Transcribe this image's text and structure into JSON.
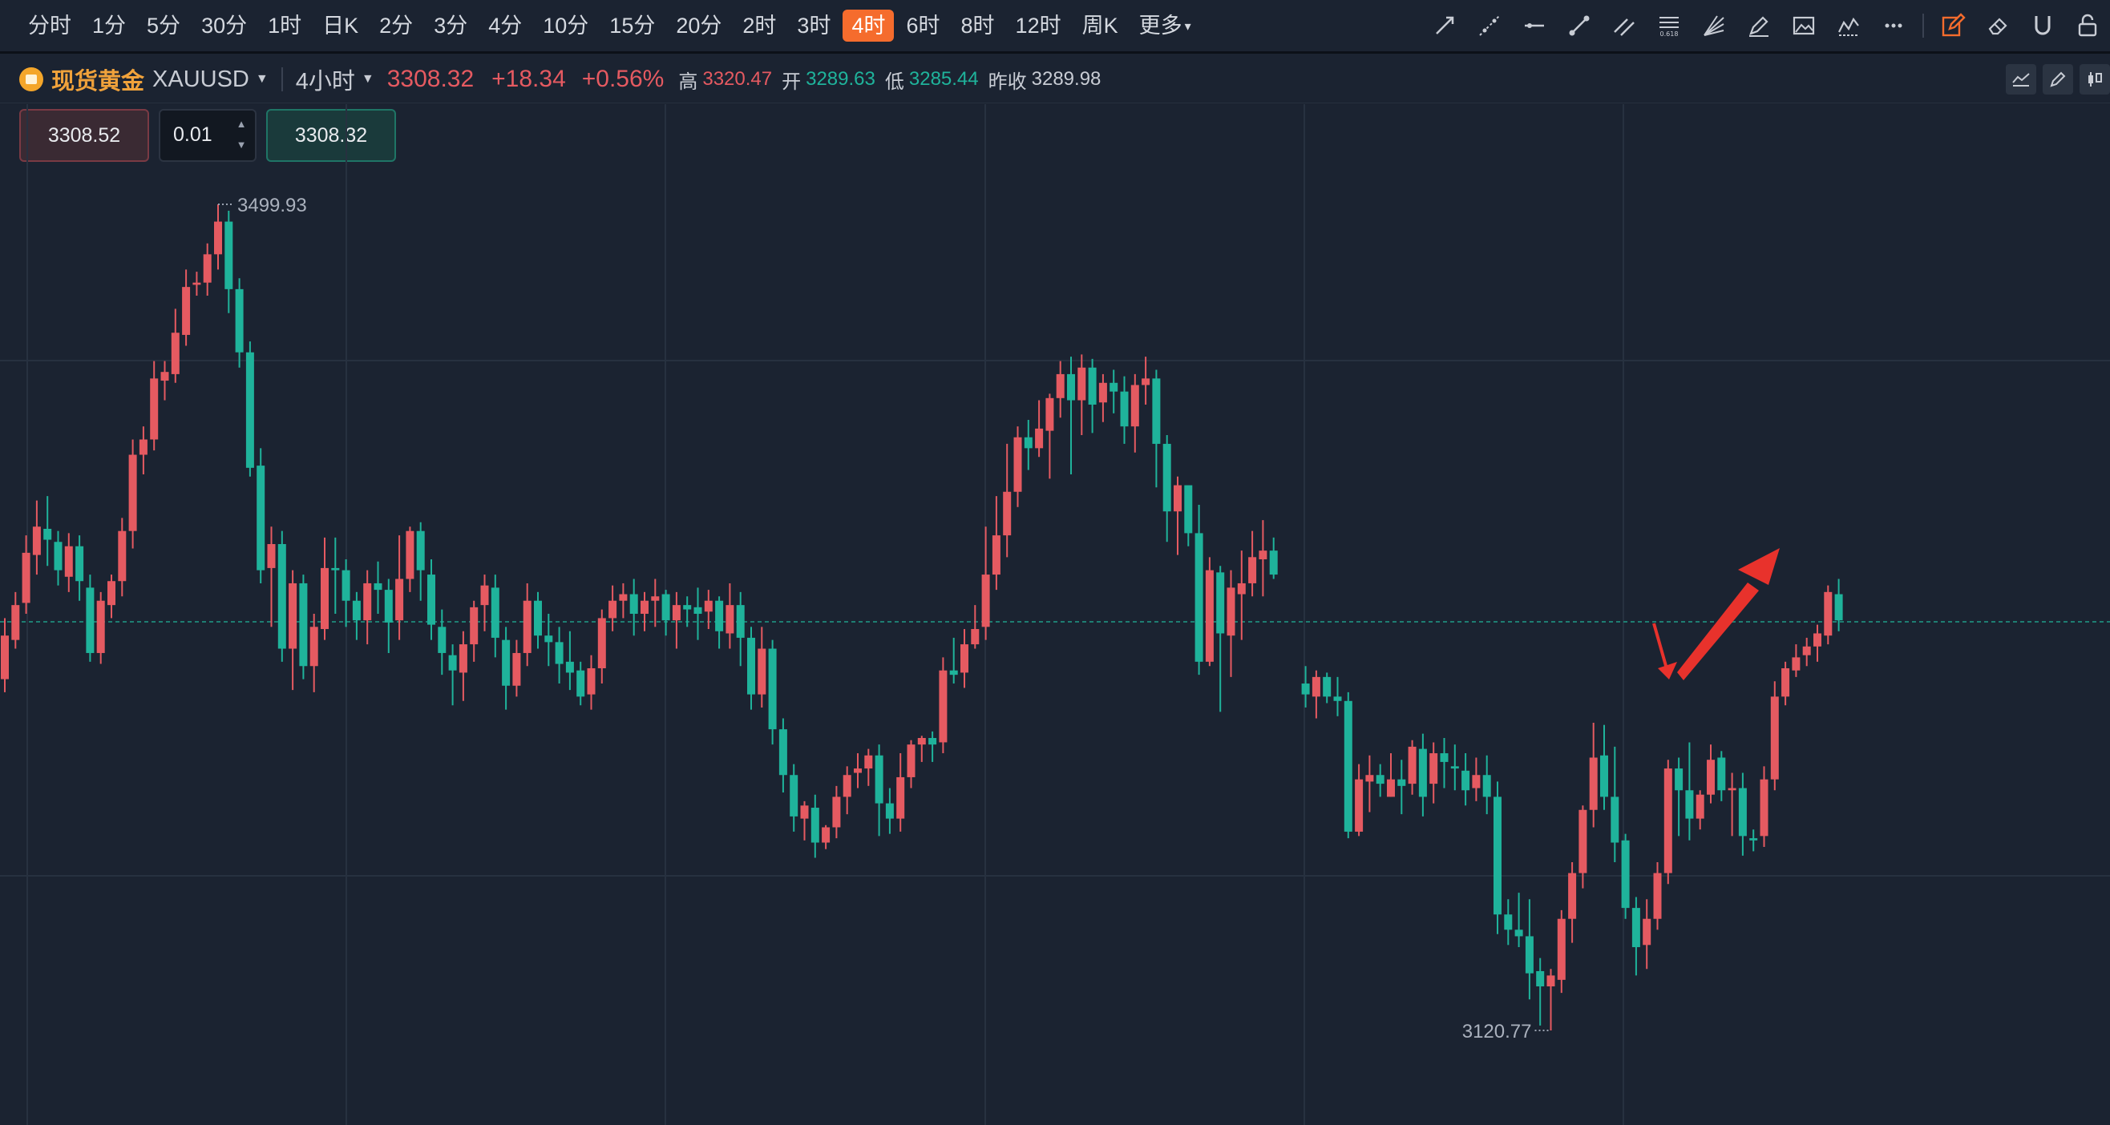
{
  "periods": [
    "分时",
    "1分",
    "5分",
    "30分",
    "1时",
    "日K",
    "2分",
    "3分",
    "4分",
    "10分",
    "15分",
    "20分",
    "2时",
    "3时",
    "4时",
    "6时",
    "8时",
    "12时",
    "周K",
    "更多"
  ],
  "active_period": "4时",
  "tools": [
    {
      "name": "ray-line-icon"
    },
    {
      "name": "extended-line-icon"
    },
    {
      "name": "horizontal-line-icon"
    },
    {
      "name": "segment-line-icon"
    },
    {
      "name": "parallel-channel-icon"
    },
    {
      "name": "fibonacci-icon"
    },
    {
      "name": "gann-fan-icon"
    },
    {
      "name": "highlighter-icon"
    },
    {
      "name": "image-icon"
    },
    {
      "name": "pattern-icon"
    },
    {
      "name": "more-dots-icon"
    },
    {
      "name": "edit-draw-icon"
    },
    {
      "name": "eraser-icon"
    },
    {
      "name": "magnet-icon"
    },
    {
      "name": "lock-icon"
    }
  ],
  "symbol": {
    "name": "现货黄金",
    "code": "XAUUSD",
    "interval": "4小时",
    "price": "3308.32",
    "change": "+18.34",
    "change_pct": "+0.56%",
    "high_label": "高",
    "high": "3320.47",
    "open_label": "开",
    "open": "3289.63",
    "low_label": "低",
    "low": "3285.44",
    "prev_label": "昨收",
    "prev_close": "3289.98"
  },
  "trade": {
    "sell": "3308.52",
    "qty": "0.01",
    "buy": "3308.32"
  },
  "colors": {
    "up": "#e55a61",
    "down": "#1fb39b",
    "accent": "#f56c2d",
    "annotation": "#e8322c"
  },
  "chart_data": {
    "type": "candlestick",
    "title": "",
    "max_label": "3499.93",
    "min_label": "3120.77",
    "current_price": 3308.32,
    "ylim": [
      3080,
      3560
    ],
    "candles": [
      [
        3282,
        3302,
        3276,
        3310
      ],
      [
        3300,
        3316,
        3296,
        3322
      ],
      [
        3317,
        3340,
        3312,
        3348
      ],
      [
        3339,
        3352,
        3330,
        3364
      ],
      [
        3351,
        3346,
        3334,
        3366
      ],
      [
        3345,
        3332,
        3325,
        3350
      ],
      [
        3329,
        3343,
        3322,
        3349
      ],
      [
        3343,
        3327,
        3318,
        3348
      ],
      [
        3324,
        3294,
        3290,
        3330
      ],
      [
        3294,
        3318,
        3289,
        3322
      ],
      [
        3316,
        3327,
        3310,
        3330
      ],
      [
        3327,
        3350,
        3320,
        3356
      ],
      [
        3350,
        3385,
        3342,
        3392
      ],
      [
        3385,
        3392,
        3376,
        3398
      ],
      [
        3392,
        3420,
        3387,
        3428
      ],
      [
        3419,
        3423,
        3410,
        3428
      ],
      [
        3422,
        3441,
        3418,
        3452
      ],
      [
        3440,
        3462,
        3435,
        3470
      ],
      [
        3463,
        3464,
        3458,
        3469
      ],
      [
        3464,
        3477,
        3458,
        3482
      ],
      [
        3477,
        3492,
        3470,
        3499.93
      ],
      [
        3492,
        3461,
        3450,
        3497
      ],
      [
        3461,
        3432,
        3425,
        3466
      ],
      [
        3432,
        3379,
        3375,
        3437
      ],
      [
        3380,
        3332,
        3326,
        3388
      ],
      [
        3333,
        3344,
        3306,
        3352
      ],
      [
        3344,
        3296,
        3290,
        3350
      ],
      [
        3296,
        3326,
        3277,
        3332
      ],
      [
        3326,
        3288,
        3282,
        3330
      ],
      [
        3288,
        3306,
        3276,
        3312
      ],
      [
        3305,
        3333,
        3300,
        3347
      ],
      [
        3333,
        3332,
        3312,
        3347
      ],
      [
        3332,
        3318,
        3306,
        3337
      ],
      [
        3318,
        3309,
        3300,
        3322
      ],
      [
        3309,
        3326,
        3298,
        3332
      ],
      [
        3326,
        3323,
        3312,
        3336
      ],
      [
        3323,
        3308,
        3294,
        3328
      ],
      [
        3309,
        3328,
        3300,
        3348
      ],
      [
        3328,
        3350,
        3322,
        3352
      ],
      [
        3350,
        3332,
        3318,
        3354
      ],
      [
        3330,
        3307,
        3300,
        3337
      ],
      [
        3306,
        3294,
        3284,
        3314
      ],
      [
        3293,
        3286,
        3270,
        3298
      ],
      [
        3285,
        3298,
        3272,
        3304
      ],
      [
        3298,
        3315,
        3290,
        3318
      ],
      [
        3316,
        3325,
        3304,
        3330
      ],
      [
        3324,
        3301,
        3292,
        3330
      ],
      [
        3300,
        3279,
        3268,
        3306
      ],
      [
        3279,
        3294,
        3274,
        3300
      ],
      [
        3294,
        3318,
        3288,
        3326
      ],
      [
        3318,
        3302,
        3296,
        3322
      ],
      [
        3302,
        3299,
        3288,
        3312
      ],
      [
        3299,
        3289,
        3280,
        3306
      ],
      [
        3290,
        3285,
        3277,
        3304
      ],
      [
        3286,
        3274,
        3270,
        3290
      ],
      [
        3275,
        3287,
        3268,
        3293
      ],
      [
        3287,
        3310,
        3280,
        3314
      ],
      [
        3310,
        3318,
        3304,
        3325
      ],
      [
        3318,
        3321,
        3310,
        3326
      ],
      [
        3321,
        3312,
        3302,
        3328
      ],
      [
        3312,
        3318,
        3304,
        3322
      ],
      [
        3318,
        3320,
        3306,
        3328
      ],
      [
        3321,
        3309,
        3302,
        3323
      ],
      [
        3309,
        3316,
        3296,
        3322
      ],
      [
        3316,
        3314,
        3306,
        3320
      ],
      [
        3315,
        3312,
        3300,
        3324
      ],
      [
        3313,
        3318,
        3305,
        3323
      ],
      [
        3318,
        3304,
        3296,
        3320
      ],
      [
        3303,
        3316,
        3296,
        3326
      ],
      [
        3316,
        3301,
        3288,
        3322
      ],
      [
        3301,
        3275,
        3268,
        3306
      ],
      [
        3275,
        3296,
        3269,
        3306
      ],
      [
        3296,
        3259,
        3252,
        3300
      ],
      [
        3259,
        3238,
        3230,
        3264
      ],
      [
        3238,
        3219,
        3212,
        3243
      ],
      [
        3218,
        3224,
        3208,
        3226
      ],
      [
        3223,
        3207,
        3200,
        3229
      ],
      [
        3207,
        3214,
        3204,
        3215
      ],
      [
        3214,
        3228,
        3209,
        3233
      ],
      [
        3228,
        3238,
        3220,
        3242
      ],
      [
        3239,
        3241,
        3232,
        3248
      ],
      [
        3241,
        3247,
        3233,
        3250
      ],
      [
        3247,
        3225,
        3210,
        3252
      ],
      [
        3225,
        3218,
        3211,
        3232
      ],
      [
        3218,
        3237,
        3212,
        3248
      ],
      [
        3237,
        3252,
        3232,
        3254
      ],
      [
        3252,
        3255,
        3244,
        3256
      ],
      [
        3255,
        3252,
        3244,
        3258
      ],
      [
        3253,
        3286,
        3248,
        3292
      ],
      [
        3286,
        3284,
        3280,
        3301
      ],
      [
        3285,
        3298,
        3278,
        3305
      ],
      [
        3298,
        3305,
        3296,
        3316
      ],
      [
        3306,
        3330,
        3300,
        3352
      ],
      [
        3330,
        3348,
        3323,
        3366
      ],
      [
        3348,
        3368,
        3338,
        3390
      ],
      [
        3368,
        3393,
        3361,
        3398
      ],
      [
        3393,
        3388,
        3378,
        3401
      ],
      [
        3388,
        3397,
        3384,
        3410
      ],
      [
        3396,
        3411,
        3374,
        3413
      ],
      [
        3411,
        3422,
        3402,
        3428
      ],
      [
        3422,
        3410,
        3376,
        3430
      ],
      [
        3410,
        3425,
        3394,
        3431
      ],
      [
        3425,
        3408,
        3395,
        3429
      ],
      [
        3409,
        3418,
        3400,
        3422
      ],
      [
        3418,
        3414,
        3404,
        3424
      ],
      [
        3414,
        3398,
        3390,
        3421
      ],
      [
        3398,
        3417,
        3386,
        3422
      ],
      [
        3417,
        3420,
        3408,
        3430
      ],
      [
        3420,
        3390,
        3370,
        3424
      ],
      [
        3390,
        3359,
        3345,
        3394
      ],
      [
        3359,
        3371,
        3339,
        3375
      ],
      [
        3371,
        3349,
        3343,
        3356
      ],
      [
        3349,
        3290,
        3284,
        3362
      ],
      [
        3290,
        3332,
        3288,
        3338
      ],
      [
        3331,
        3303,
        3267,
        3334
      ],
      [
        3302,
        3324,
        3283,
        3332
      ],
      [
        3321,
        3326,
        3300,
        3341
      ],
      [
        3326,
        3338,
        3320,
        3350
      ],
      [
        3337,
        3341,
        3320,
        3355
      ],
      [
        3341,
        3330,
        3328,
        3347
      ],
      null,
      null,
      [
        3280,
        3275,
        3269,
        3288
      ],
      [
        3274,
        3283,
        3264,
        3286
      ],
      [
        3283,
        3274,
        3271,
        3285
      ],
      [
        3274,
        3272,
        3265,
        3283
      ],
      [
        3272,
        3212,
        3209,
        3276
      ],
      [
        3212,
        3236,
        3210,
        3243
      ],
      [
        3235,
        3238,
        3221,
        3247
      ],
      [
        3238,
        3234,
        3228,
        3243
      ],
      [
        3228,
        3236,
        3228,
        3248
      ],
      [
        3236,
        3233,
        3220,
        3245
      ],
      [
        3234,
        3251,
        3229,
        3254
      ],
      [
        3250,
        3228,
        3219,
        3257
      ],
      [
        3234,
        3248,
        3225,
        3253
      ],
      [
        3248,
        3244,
        3232,
        3255
      ],
      [
        3242,
        3241,
        3231,
        3252
      ],
      [
        3240,
        3231,
        3224,
        3248
      ],
      [
        3232,
        3238,
        3226,
        3246
      ],
      [
        3238,
        3228,
        3220,
        3247
      ],
      [
        3228,
        3174,
        3165,
        3235
      ],
      [
        3174,
        3167,
        3160,
        3181
      ],
      [
        3167,
        3164,
        3159,
        3184
      ],
      [
        3164,
        3147,
        3135,
        3181
      ],
      [
        3148,
        3141,
        3123,
        3154
      ],
      [
        3141,
        3146,
        3120.77,
        3149
      ],
      [
        3144,
        3172,
        3138,
        3176
      ],
      [
        3172,
        3193,
        3161,
        3198
      ],
      [
        3193,
        3222,
        3186,
        3224
      ],
      [
        3222,
        3246,
        3214,
        3262
      ],
      [
        3247,
        3228,
        3222,
        3261
      ],
      [
        3228,
        3207,
        3198,
        3251
      ],
      [
        3208,
        3177,
        3172,
        3211
      ],
      [
        3177,
        3159,
        3146,
        3182
      ],
      [
        3160,
        3172,
        3149,
        3181
      ],
      [
        3172,
        3193,
        3167,
        3198
      ],
      [
        3193,
        3241,
        3188,
        3245
      ],
      [
        3241,
        3231,
        3210,
        3246
      ],
      [
        3231,
        3218,
        3208,
        3253
      ],
      [
        3218,
        3229,
        3213,
        3231
      ],
      [
        3229,
        3245,
        3225,
        3252
      ],
      [
        3246,
        3231,
        3226,
        3249
      ],
      [
        3231,
        3232,
        3210,
        3239
      ],
      [
        3232,
        3210,
        3201,
        3239
      ],
      [
        3209,
        3208,
        3203,
        3213
      ],
      [
        3210,
        3236,
        3205,
        3242
      ],
      [
        3236,
        3274,
        3231,
        3281
      ],
      [
        3274,
        3287,
        3270,
        3290
      ],
      [
        3286,
        3292,
        3283,
        3298
      ],
      [
        3293,
        3297,
        3288,
        3301
      ],
      [
        3297,
        3303,
        3290,
        3307
      ],
      [
        3302,
        3322,
        3298,
        3325
      ],
      [
        3321,
        3309,
        3304,
        3328
      ]
    ]
  }
}
